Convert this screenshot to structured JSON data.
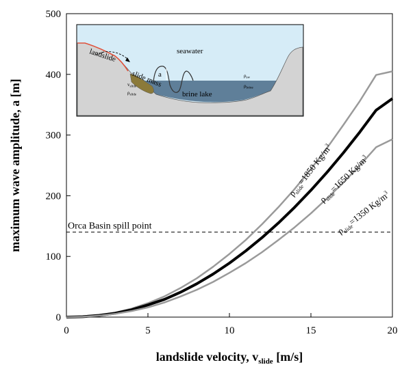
{
  "chart_data": {
    "type": "line",
    "xlabel_main": "landslide velocity, v",
    "xlabel_sub": "slide",
    "xlabel_unit": " [m/s]",
    "ylabel": "maximum wave amplitude, a [m]",
    "xlim": [
      0,
      20
    ],
    "ylim": [
      0,
      500
    ],
    "x_ticks": [
      "0",
      "5",
      "10",
      "15",
      "20"
    ],
    "y_ticks": [
      "0",
      "100",
      "200",
      "300",
      "400",
      "500"
    ],
    "x": [
      0,
      1,
      2,
      3,
      4,
      5,
      6,
      7,
      8,
      9,
      10,
      11,
      12,
      13,
      14,
      15,
      16,
      17,
      18,
      19,
      20
    ],
    "series": [
      {
        "name_rho": "ρ",
        "name_sub": "slide",
        "name_rest": "=1850 Kg/m",
        "name_sup": "3",
        "color": "#9a9a9a",
        "values": [
          0,
          0.8,
          3.2,
          7.5,
          14,
          23,
          34,
          48,
          64,
          83,
          104,
          127,
          153,
          181,
          211,
          244,
          279,
          317,
          356,
          399,
          405
        ]
      },
      {
        "name_rho": "ρ",
        "name_sub": "slide",
        "name_rest": "=1650 Kg/m",
        "name_sup": "3",
        "color": "#000000",
        "values": [
          0,
          0.7,
          2.8,
          6.4,
          12,
          20,
          29,
          41,
          55,
          71,
          89,
          109,
          131,
          155,
          181,
          209,
          239,
          271,
          305,
          341,
          360
        ]
      },
      {
        "name_rho": "ρ",
        "name_sub": "slide",
        "name_rest": "=1350 Kg/m",
        "name_sup": "3",
        "color": "#9a9a9a",
        "values": [
          0,
          0.6,
          2.4,
          5.4,
          10,
          16,
          24,
          34,
          45,
          58,
          73,
          89,
          107,
          127,
          148,
          171,
          196,
          222,
          250,
          280,
          293
        ]
      }
    ],
    "reference_line": {
      "label": "Orca Basin spill point",
      "y": 140
    },
    "inset": {
      "labels": {
        "seawater": "seawater",
        "landslide": "landslide",
        "slide_mass": "slide mass",
        "brine_lake": "brine lake",
        "a": "a",
        "v_slide": "v",
        "v_slide_sub": "slide",
        "rho_slide": "ρ",
        "rho_slide_sub": "slide",
        "rho_sw": "ρ",
        "rho_sw_sub": "sw",
        "rho_brine": "ρ",
        "rho_brine_sub": "brine"
      },
      "colors": {
        "seawater": "#d6ecf7",
        "brine": "#5f7f99",
        "ground": "#d3d3d3",
        "slide": "#8b7a3a",
        "slip_surface": "#e0503a"
      }
    }
  }
}
